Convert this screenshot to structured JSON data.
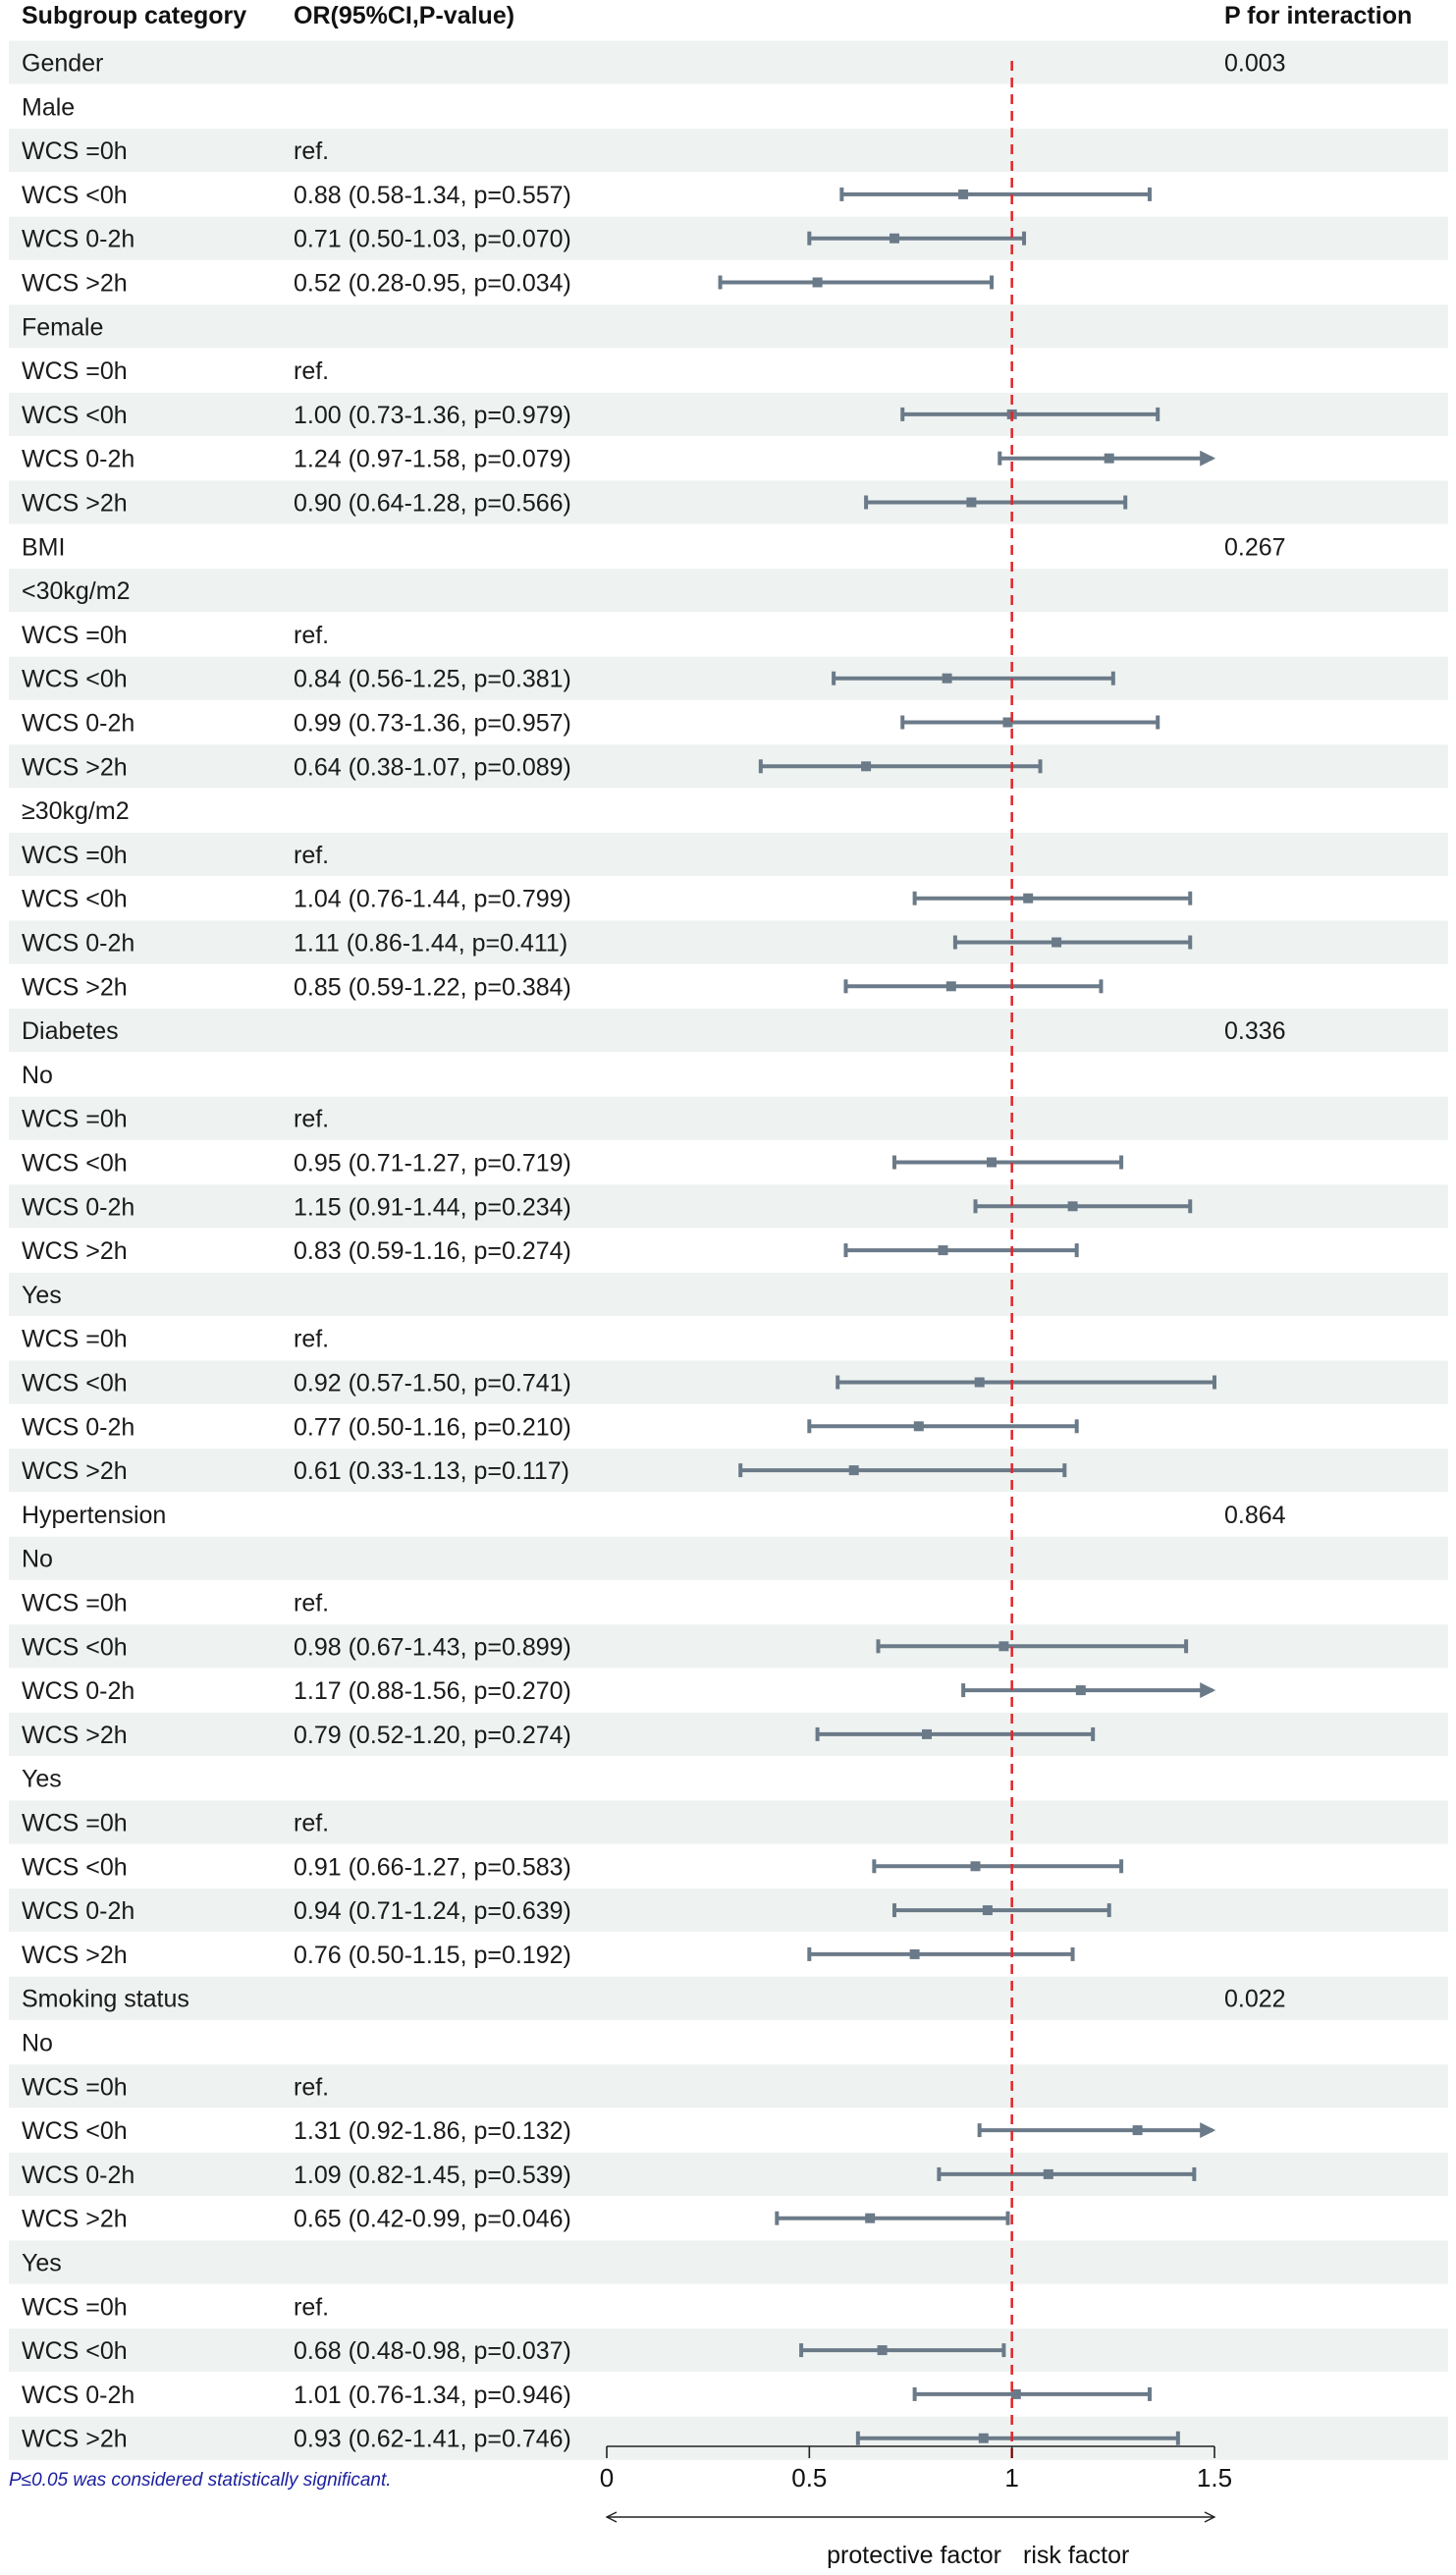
{
  "headers": {
    "subgroup": "Subgroup category",
    "or": "OR(95%CI,P-value)",
    "p_interaction": "P for interaction"
  },
  "footnote": "P≤0.05 was considered statistically significant.",
  "axis_captions": {
    "left": "protective factor",
    "right": "risk factor"
  },
  "colors": {
    "stripe": "#eef2f1",
    "ci_bar": "#6b7a88",
    "reference_line": "#e0262b",
    "footnote": "#1b1f9e"
  },
  "chart_data": {
    "type": "forest",
    "title": "",
    "xlabel": "",
    "x_ticks": [
      0,
      0.5,
      1,
      1.5
    ],
    "x_tick_labels": [
      "0",
      "0.5",
      "1",
      "1.5"
    ],
    "xlim": [
      0,
      1.5
    ],
    "reference_line": 1,
    "rows": [
      {
        "label": "Gender",
        "kind": "group",
        "p_interaction": "0.003"
      },
      {
        "label": "Male",
        "kind": "subgroup"
      },
      {
        "label": "WCS =0h",
        "kind": "ref",
        "text": "ref."
      },
      {
        "label": "WCS <0h",
        "kind": "estimate",
        "text": "0.88 (0.58-1.34, p=0.557)",
        "or": 0.88,
        "lo": 0.58,
        "hi": 1.34
      },
      {
        "label": "WCS 0-2h",
        "kind": "estimate",
        "text": "0.71 (0.50-1.03, p=0.070)",
        "or": 0.71,
        "lo": 0.5,
        "hi": 1.03
      },
      {
        "label": "WCS >2h",
        "kind": "estimate",
        "text": "0.52 (0.28-0.95, p=0.034)",
        "or": 0.52,
        "lo": 0.28,
        "hi": 0.95
      },
      {
        "label": "Female",
        "kind": "subgroup"
      },
      {
        "label": "WCS =0h",
        "kind": "ref",
        "text": "ref."
      },
      {
        "label": "WCS <0h",
        "kind": "estimate",
        "text": "1.00 (0.73-1.36, p=0.979)",
        "or": 1.0,
        "lo": 0.73,
        "hi": 1.36
      },
      {
        "label": "WCS 0-2h",
        "kind": "estimate",
        "text": "1.24 (0.97-1.58, p=0.079)",
        "or": 1.24,
        "lo": 0.97,
        "hi": 1.58
      },
      {
        "label": "WCS >2h",
        "kind": "estimate",
        "text": "0.90 (0.64-1.28, p=0.566)",
        "or": 0.9,
        "lo": 0.64,
        "hi": 1.28
      },
      {
        "label": "BMI",
        "kind": "group",
        "p_interaction": "0.267"
      },
      {
        "label": "<30kg/m2",
        "kind": "subgroup"
      },
      {
        "label": "WCS =0h",
        "kind": "ref",
        "text": "ref."
      },
      {
        "label": "WCS <0h",
        "kind": "estimate",
        "text": "0.84 (0.56-1.25, p=0.381)",
        "or": 0.84,
        "lo": 0.56,
        "hi": 1.25
      },
      {
        "label": "WCS 0-2h",
        "kind": "estimate",
        "text": "0.99 (0.73-1.36, p=0.957)",
        "or": 0.99,
        "lo": 0.73,
        "hi": 1.36
      },
      {
        "label": "WCS >2h",
        "kind": "estimate",
        "text": "0.64 (0.38-1.07, p=0.089)",
        "or": 0.64,
        "lo": 0.38,
        "hi": 1.07
      },
      {
        "label": "≥30kg/m2",
        "kind": "subgroup"
      },
      {
        "label": "WCS =0h",
        "kind": "ref",
        "text": "ref."
      },
      {
        "label": "WCS <0h",
        "kind": "estimate",
        "text": "1.04 (0.76-1.44, p=0.799)",
        "or": 1.04,
        "lo": 0.76,
        "hi": 1.44
      },
      {
        "label": "WCS 0-2h",
        "kind": "estimate",
        "text": "1.11 (0.86-1.44, p=0.411)",
        "or": 1.11,
        "lo": 0.86,
        "hi": 1.44
      },
      {
        "label": "WCS >2h",
        "kind": "estimate",
        "text": "0.85 (0.59-1.22, p=0.384)",
        "or": 0.85,
        "lo": 0.59,
        "hi": 1.22
      },
      {
        "label": "Diabetes",
        "kind": "group",
        "p_interaction": "0.336"
      },
      {
        "label": "No",
        "kind": "subgroup"
      },
      {
        "label": "WCS =0h",
        "kind": "ref",
        "text": "ref."
      },
      {
        "label": "WCS <0h",
        "kind": "estimate",
        "text": "0.95 (0.71-1.27, p=0.719)",
        "or": 0.95,
        "lo": 0.71,
        "hi": 1.27
      },
      {
        "label": "WCS 0-2h",
        "kind": "estimate",
        "text": "1.15 (0.91-1.44, p=0.234)",
        "or": 1.15,
        "lo": 0.91,
        "hi": 1.44
      },
      {
        "label": "WCS >2h",
        "kind": "estimate",
        "text": "0.83 (0.59-1.16, p=0.274)",
        "or": 0.83,
        "lo": 0.59,
        "hi": 1.16
      },
      {
        "label": "Yes",
        "kind": "subgroup"
      },
      {
        "label": "WCS =0h",
        "kind": "ref",
        "text": "ref."
      },
      {
        "label": "WCS <0h",
        "kind": "estimate",
        "text": "0.92 (0.57-1.50, p=0.741)",
        "or": 0.92,
        "lo": 0.57,
        "hi": 1.5
      },
      {
        "label": "WCS 0-2h",
        "kind": "estimate",
        "text": "0.77 (0.50-1.16, p=0.210)",
        "or": 0.77,
        "lo": 0.5,
        "hi": 1.16
      },
      {
        "label": "WCS >2h",
        "kind": "estimate",
        "text": "0.61 (0.33-1.13, p=0.117)",
        "or": 0.61,
        "lo": 0.33,
        "hi": 1.13
      },
      {
        "label": "Hypertension",
        "kind": "group",
        "p_interaction": "0.864"
      },
      {
        "label": "No",
        "kind": "subgroup"
      },
      {
        "label": "WCS =0h",
        "kind": "ref",
        "text": "ref."
      },
      {
        "label": "WCS <0h",
        "kind": "estimate",
        "text": "0.98 (0.67-1.43, p=0.899)",
        "or": 0.98,
        "lo": 0.67,
        "hi": 1.43
      },
      {
        "label": "WCS 0-2h",
        "kind": "estimate",
        "text": "1.17 (0.88-1.56, p=0.270)",
        "or": 1.17,
        "lo": 0.88,
        "hi": 1.56
      },
      {
        "label": "WCS >2h",
        "kind": "estimate",
        "text": "0.79 (0.52-1.20, p=0.274)",
        "or": 0.79,
        "lo": 0.52,
        "hi": 1.2
      },
      {
        "label": "Yes",
        "kind": "subgroup"
      },
      {
        "label": "WCS =0h",
        "kind": "ref",
        "text": "ref."
      },
      {
        "label": "WCS <0h",
        "kind": "estimate",
        "text": "0.91 (0.66-1.27, p=0.583)",
        "or": 0.91,
        "lo": 0.66,
        "hi": 1.27
      },
      {
        "label": "WCS 0-2h",
        "kind": "estimate",
        "text": "0.94 (0.71-1.24, p=0.639)",
        "or": 0.94,
        "lo": 0.71,
        "hi": 1.24
      },
      {
        "label": "WCS >2h",
        "kind": "estimate",
        "text": "0.76 (0.50-1.15, p=0.192)",
        "or": 0.76,
        "lo": 0.5,
        "hi": 1.15
      },
      {
        "label": "Smoking status",
        "kind": "group",
        "p_interaction": "0.022"
      },
      {
        "label": "No",
        "kind": "subgroup"
      },
      {
        "label": "WCS =0h",
        "kind": "ref",
        "text": "ref."
      },
      {
        "label": "WCS <0h",
        "kind": "estimate",
        "text": "1.31 (0.92-1.86, p=0.132)",
        "or": 1.31,
        "lo": 0.92,
        "hi": 1.86
      },
      {
        "label": "WCS 0-2h",
        "kind": "estimate",
        "text": "1.09 (0.82-1.45, p=0.539)",
        "or": 1.09,
        "lo": 0.82,
        "hi": 1.45
      },
      {
        "label": "WCS >2h",
        "kind": "estimate",
        "text": "0.65 (0.42-0.99, p=0.046)",
        "or": 0.65,
        "lo": 0.42,
        "hi": 0.99
      },
      {
        "label": "Yes",
        "kind": "subgroup"
      },
      {
        "label": "WCS =0h",
        "kind": "ref",
        "text": "ref."
      },
      {
        "label": "WCS <0h",
        "kind": "estimate",
        "text": "0.68 (0.48-0.98, p=0.037)",
        "or": 0.68,
        "lo": 0.48,
        "hi": 0.98
      },
      {
        "label": "WCS 0-2h",
        "kind": "estimate",
        "text": "1.01 (0.76-1.34, p=0.946)",
        "or": 1.01,
        "lo": 0.76,
        "hi": 1.34
      },
      {
        "label": "WCS >2h",
        "kind": "estimate",
        "text": "0.93 (0.62-1.41, p=0.746)",
        "or": 0.93,
        "lo": 0.62,
        "hi": 1.41
      }
    ]
  }
}
